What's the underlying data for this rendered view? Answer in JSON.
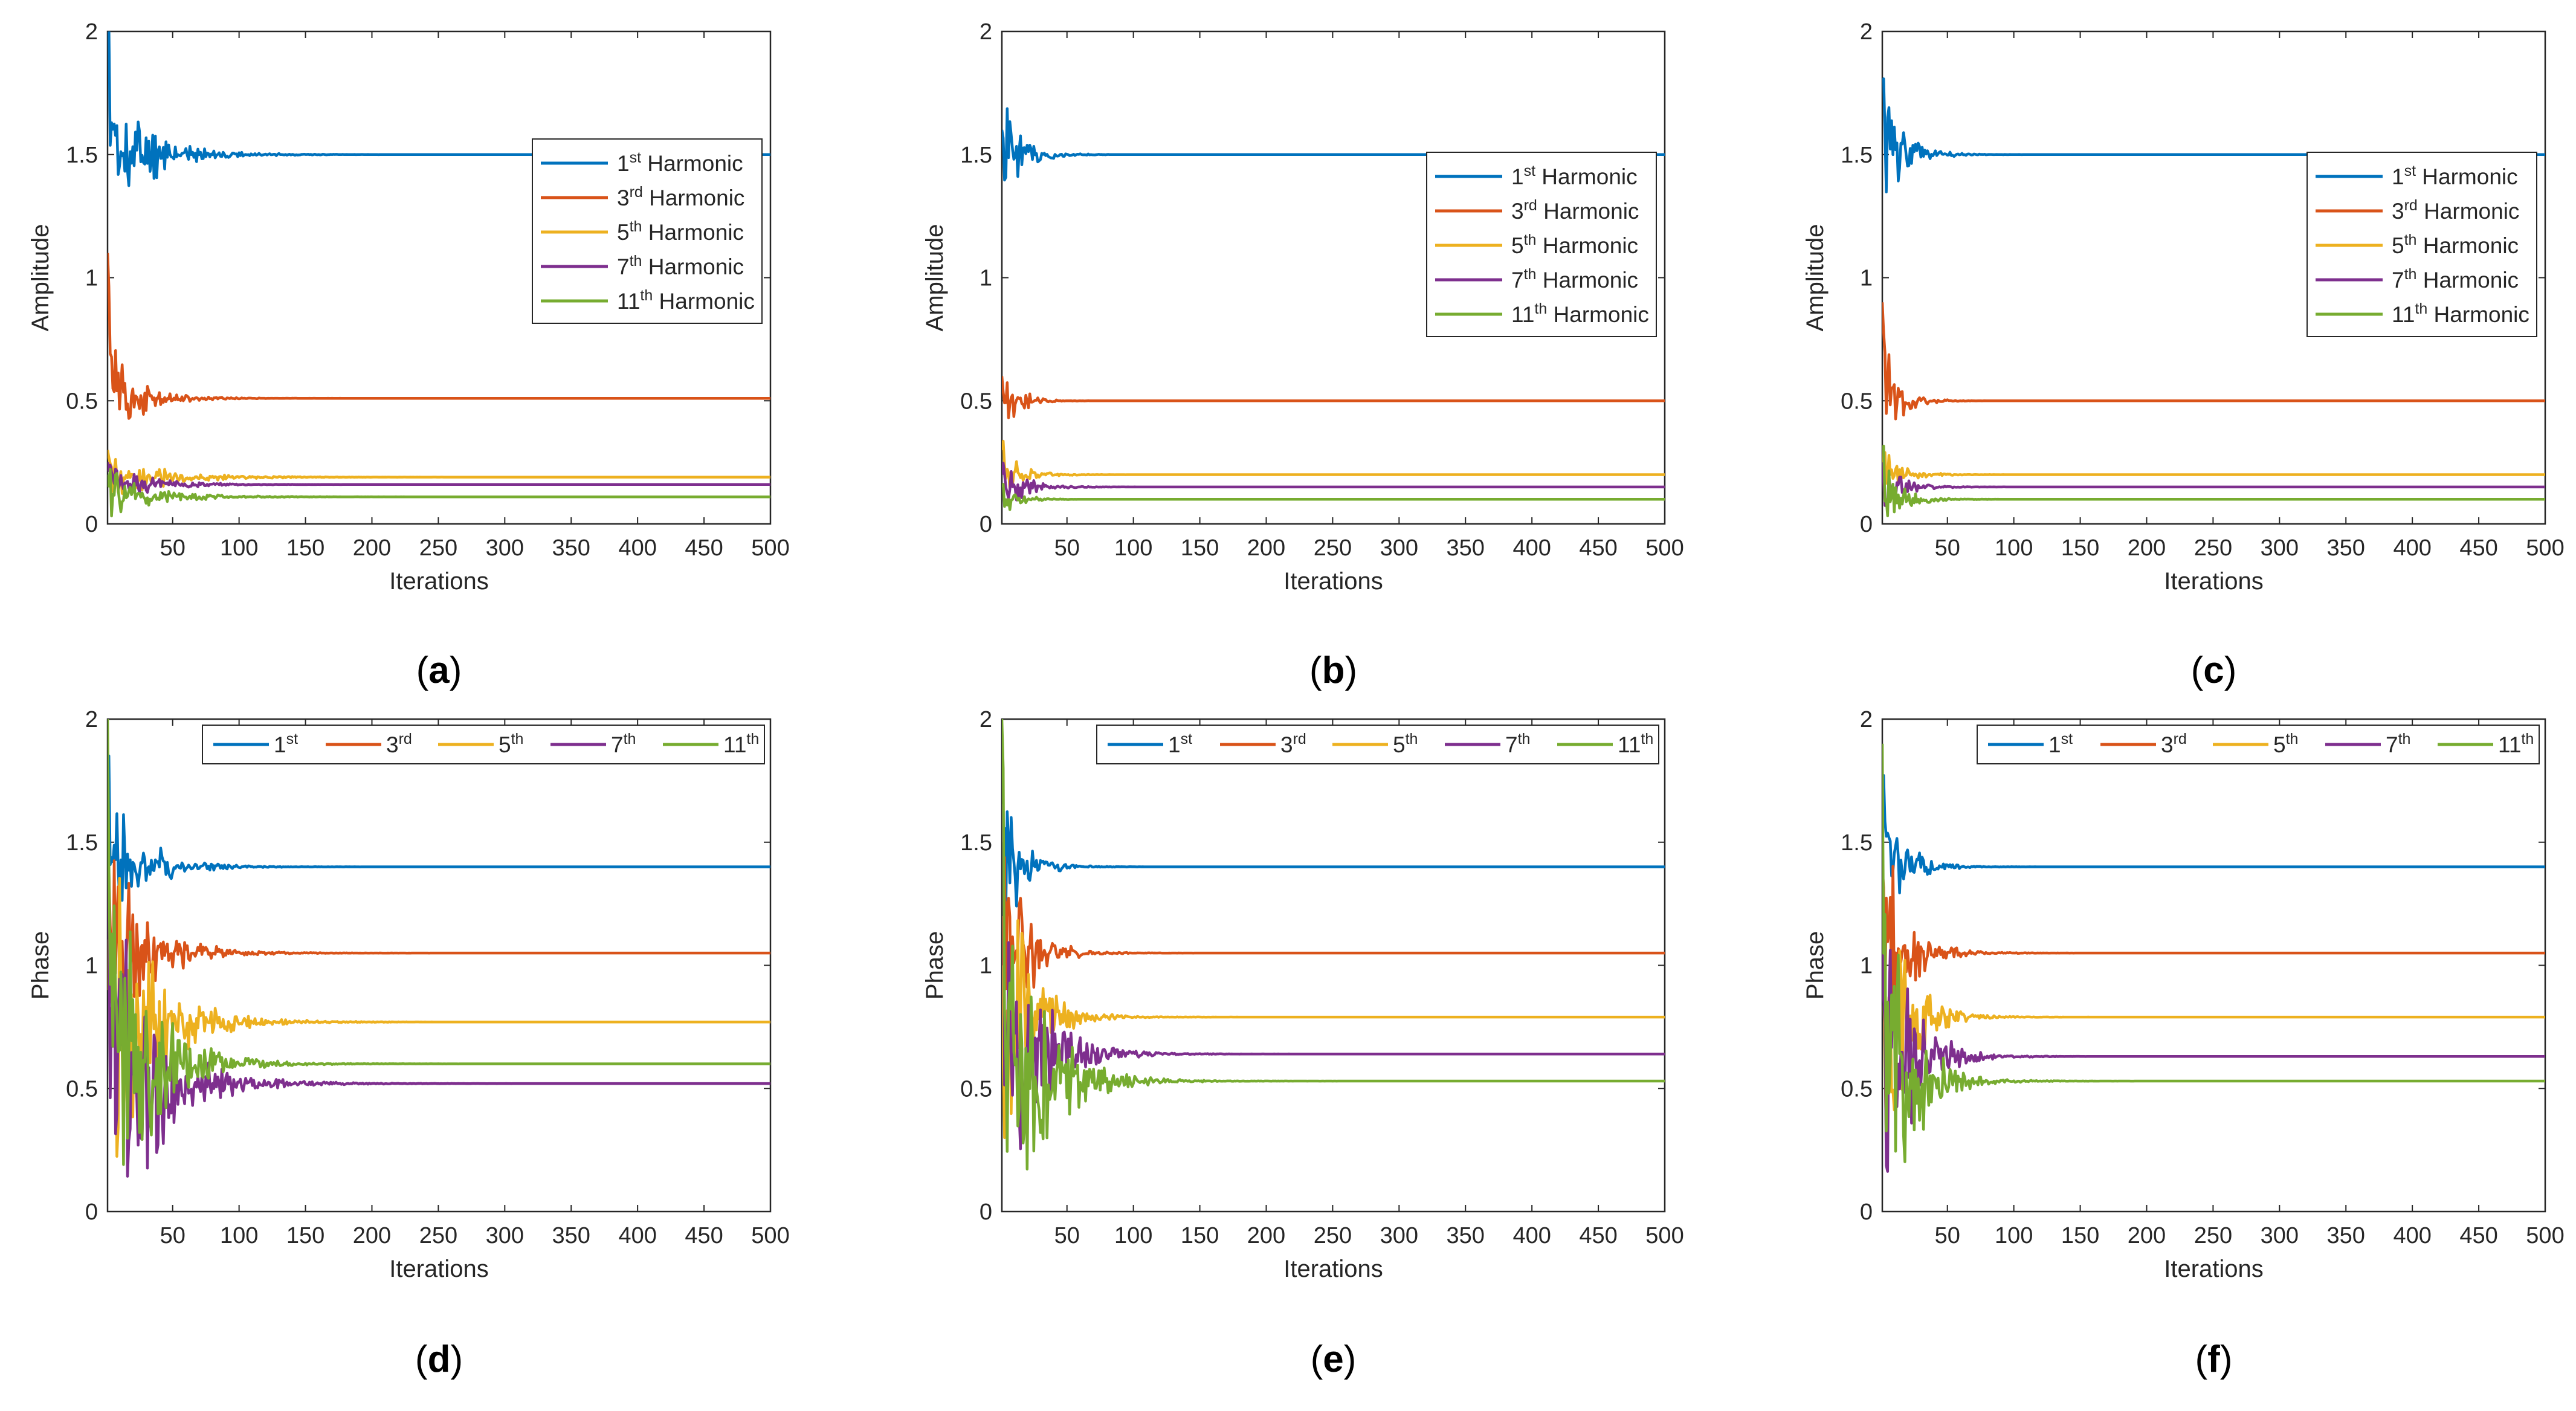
{
  "colors": {
    "first": "#0072BD",
    "third": "#D95319",
    "fifth": "#EDB120",
    "seventh": "#7E2F8E",
    "eleventh": "#77AC30",
    "axis": "#262626",
    "frame": "#262626"
  },
  "chart_data": [
    {
      "id": "a",
      "caption_letter": "a",
      "type": "line",
      "xlabel": "Iterations",
      "ylabel": "Amplitude",
      "xlim": [
        1,
        500
      ],
      "ylim": [
        0,
        2
      ],
      "xticks": [
        50,
        100,
        150,
        200,
        250,
        300,
        350,
        400,
        450,
        500
      ],
      "yticks": [
        0,
        0.5,
        1,
        1.5,
        2
      ],
      "ytick_labels": [
        "0",
        "0.5",
        "1",
        "1.5",
        "2"
      ],
      "legend": {
        "placement": "right-middle",
        "layout": "vertical"
      },
      "series": [
        {
          "key": "first",
          "name": "Harmonic",
          "num": "1",
          "sup": "st",
          "final": 1.5,
          "start": 2.0,
          "settle": 120,
          "amp": 0.35,
          "seed": 11
        },
        {
          "key": "third",
          "name": "Harmonic",
          "num": "3",
          "sup": "rd",
          "final": 0.51,
          "start": 1.1,
          "settle": 90,
          "amp": 0.25,
          "seed": 12
        },
        {
          "key": "fifth",
          "name": "Harmonic",
          "num": "5",
          "sup": "th",
          "final": 0.19,
          "start": 0.3,
          "settle": 150,
          "amp": 0.12,
          "seed": 13
        },
        {
          "key": "seventh",
          "name": "Harmonic",
          "num": "7",
          "sup": "th",
          "final": 0.16,
          "start": 0.25,
          "settle": 110,
          "amp": 0.12,
          "seed": 14
        },
        {
          "key": "eleventh",
          "name": "Harmonic",
          "num": "11",
          "sup": "th",
          "final": 0.11,
          "start": 0.2,
          "settle": 130,
          "amp": 0.12,
          "seed": 15
        }
      ]
    },
    {
      "id": "b",
      "caption_letter": "b",
      "type": "line",
      "xlabel": "Iterations",
      "ylabel": "Amplitude",
      "xlim": [
        1,
        500
      ],
      "ylim": [
        0,
        2
      ],
      "xticks": [
        50,
        100,
        150,
        200,
        250,
        300,
        350,
        400,
        450,
        500
      ],
      "yticks": [
        0,
        0.5,
        1,
        1.5,
        2
      ],
      "ytick_labels": [
        "0",
        "0.5",
        "1",
        "1.5",
        "2"
      ],
      "legend": {
        "placement": "right-middle",
        "layout": "vertical"
      },
      "series": [
        {
          "key": "first",
          "name": "Harmonic",
          "num": "1",
          "sup": "st",
          "final": 1.5,
          "start": 1.6,
          "settle": 55,
          "amp": 0.3,
          "seed": 21
        },
        {
          "key": "third",
          "name": "Harmonic",
          "num": "3",
          "sup": "rd",
          "final": 0.5,
          "start": 0.6,
          "settle": 45,
          "amp": 0.2,
          "seed": 22
        },
        {
          "key": "fifth",
          "name": "Harmonic",
          "num": "5",
          "sup": "th",
          "final": 0.2,
          "start": 0.3,
          "settle": 55,
          "amp": 0.15,
          "seed": 23
        },
        {
          "key": "seventh",
          "name": "Harmonic",
          "num": "7",
          "sup": "th",
          "final": 0.15,
          "start": 0.2,
          "settle": 60,
          "amp": 0.15,
          "seed": 24
        },
        {
          "key": "eleventh",
          "name": "Harmonic",
          "num": "11",
          "sup": "th",
          "final": 0.1,
          "start": 0.15,
          "settle": 45,
          "amp": 0.1,
          "seed": 25
        }
      ]
    },
    {
      "id": "c",
      "caption_letter": "c",
      "type": "line",
      "xlabel": "Iterations",
      "ylabel": "Amplitude",
      "xlim": [
        1,
        500
      ],
      "ylim": [
        0,
        2
      ],
      "xticks": [
        50,
        100,
        150,
        200,
        250,
        300,
        350,
        400,
        450,
        500
      ],
      "yticks": [
        0,
        0.5,
        1,
        1.5,
        2
      ],
      "ytick_labels": [
        "0",
        "0.5",
        "1",
        "1.5",
        "2"
      ],
      "legend": {
        "placement": "right-middle",
        "layout": "vertical"
      },
      "series": [
        {
          "key": "first",
          "name": "Harmonic",
          "num": "1",
          "sup": "st",
          "final": 1.5,
          "start": 1.8,
          "settle": 60,
          "amp": 0.35,
          "seed": 31
        },
        {
          "key": "third",
          "name": "Harmonic",
          "num": "3",
          "sup": "rd",
          "final": 0.5,
          "start": 0.9,
          "settle": 50,
          "amp": 0.25,
          "seed": 32
        },
        {
          "key": "fifth",
          "name": "Harmonic",
          "num": "5",
          "sup": "th",
          "final": 0.2,
          "start": 0.3,
          "settle": 60,
          "amp": 0.12,
          "seed": 33
        },
        {
          "key": "seventh",
          "name": "Harmonic",
          "num": "7",
          "sup": "th",
          "final": 0.15,
          "start": 0.25,
          "settle": 55,
          "amp": 0.15,
          "seed": 34
        },
        {
          "key": "eleventh",
          "name": "Harmonic",
          "num": "11",
          "sup": "th",
          "final": 0.1,
          "start": 0.3,
          "settle": 60,
          "amp": 0.15,
          "seed": 35
        }
      ]
    },
    {
      "id": "d",
      "caption_letter": "d",
      "type": "line",
      "xlabel": "Iterations",
      "ylabel": "Phase",
      "xlim": [
        1,
        500
      ],
      "ylim": [
        0,
        2
      ],
      "xticks": [
        50,
        100,
        150,
        200,
        250,
        300,
        350,
        400,
        450,
        500
      ],
      "yticks": [
        0,
        0.5,
        1,
        1.5,
        2
      ],
      "ytick_labels": [
        "0",
        "0.5",
        "1",
        "1.5",
        "2"
      ],
      "legend": {
        "placement": "top-right",
        "layout": "horizontal"
      },
      "series": [
        {
          "key": "first",
          "name": "",
          "num": "1",
          "sup": "st",
          "final": 1.4,
          "start": 1.6,
          "settle": 100,
          "amp": 0.4,
          "seed": 41
        },
        {
          "key": "third",
          "name": "",
          "num": "3",
          "sup": "rd",
          "final": 1.05,
          "start": 1.2,
          "settle": 110,
          "amp": 0.6,
          "seed": 42
        },
        {
          "key": "fifth",
          "name": "",
          "num": "5",
          "sup": "th",
          "final": 0.77,
          "start": 0.9,
          "settle": 130,
          "amp": 0.8,
          "seed": 43
        },
        {
          "key": "seventh",
          "name": "",
          "num": "7",
          "sup": "th",
          "final": 0.52,
          "start": 1.5,
          "settle": 140,
          "amp": 0.9,
          "seed": 44
        },
        {
          "key": "eleventh",
          "name": "",
          "num": "11",
          "sup": "th",
          "final": 0.6,
          "start": 2.0,
          "settle": 120,
          "amp": 1.0,
          "seed": 45
        }
      ]
    },
    {
      "id": "e",
      "caption_letter": "e",
      "type": "line",
      "xlabel": "Iterations",
      "ylabel": "Phase",
      "xlim": [
        1,
        500
      ],
      "ylim": [
        0,
        2
      ],
      "xticks": [
        50,
        100,
        150,
        200,
        250,
        300,
        350,
        400,
        450,
        500
      ],
      "yticks": [
        0,
        0.5,
        1,
        1.5,
        2
      ],
      "ytick_labels": [
        "0",
        "0.5",
        "1",
        "1.5",
        "2"
      ],
      "legend": {
        "placement": "top-right",
        "layout": "horizontal"
      },
      "series": [
        {
          "key": "first",
          "name": "",
          "num": "1",
          "sup": "st",
          "final": 1.4,
          "start": 1.5,
          "settle": 60,
          "amp": 0.4,
          "seed": 51
        },
        {
          "key": "third",
          "name": "",
          "num": "3",
          "sup": "rd",
          "final": 1.05,
          "start": 1.2,
          "settle": 70,
          "amp": 0.6,
          "seed": 52
        },
        {
          "key": "fifth",
          "name": "",
          "num": "5",
          "sup": "th",
          "final": 0.79,
          "start": 1.0,
          "settle": 80,
          "amp": 0.8,
          "seed": 53
        },
        {
          "key": "seventh",
          "name": "",
          "num": "7",
          "sup": "th",
          "final": 0.64,
          "start": 1.5,
          "settle": 100,
          "amp": 0.9,
          "seed": 54
        },
        {
          "key": "eleventh",
          "name": "",
          "num": "11",
          "sup": "th",
          "final": 0.53,
          "start": 2.0,
          "settle": 110,
          "amp": 1.0,
          "seed": 55
        }
      ]
    },
    {
      "id": "f",
      "caption_letter": "f",
      "type": "line",
      "xlabel": "Iterations",
      "ylabel": "Phase",
      "xlim": [
        1,
        500
      ],
      "ylim": [
        0,
        2
      ],
      "xticks": [
        50,
        100,
        150,
        200,
        250,
        300,
        350,
        400,
        450,
        500
      ],
      "yticks": [
        0,
        0.5,
        1,
        1.5,
        2
      ],
      "ytick_labels": [
        "0",
        "0.5",
        "1",
        "1.5",
        "2"
      ],
      "legend": {
        "placement": "top-right",
        "layout": "horizontal"
      },
      "series": [
        {
          "key": "first",
          "name": "",
          "num": "1",
          "sup": "st",
          "final": 1.4,
          "start": 1.7,
          "settle": 60,
          "amp": 0.4,
          "seed": 61
        },
        {
          "key": "third",
          "name": "",
          "num": "3",
          "sup": "rd",
          "final": 1.05,
          "start": 1.4,
          "settle": 70,
          "amp": 0.6,
          "seed": 62
        },
        {
          "key": "fifth",
          "name": "",
          "num": "5",
          "sup": "th",
          "final": 0.79,
          "start": 1.0,
          "settle": 70,
          "amp": 0.8,
          "seed": 63
        },
        {
          "key": "seventh",
          "name": "",
          "num": "7",
          "sup": "th",
          "final": 0.63,
          "start": 1.2,
          "settle": 80,
          "amp": 0.9,
          "seed": 64
        },
        {
          "key": "eleventh",
          "name": "",
          "num": "11",
          "sup": "th",
          "final": 0.53,
          "start": 1.9,
          "settle": 80,
          "amp": 1.0,
          "seed": 65
        }
      ]
    }
  ]
}
